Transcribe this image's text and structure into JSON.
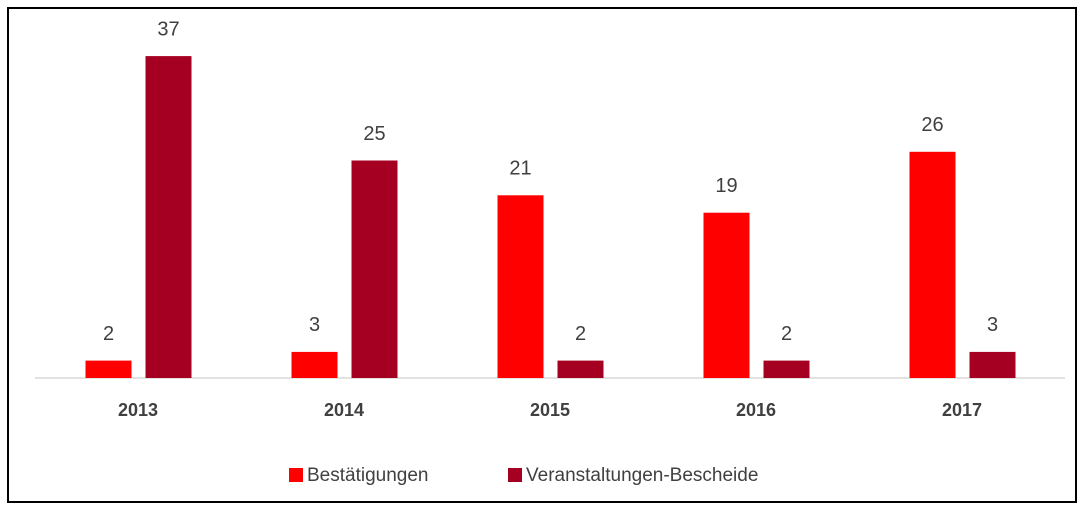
{
  "chart_data": {
    "type": "bar",
    "categories": [
      "2013",
      "2014",
      "2015",
      "2016",
      "2017"
    ],
    "series": [
      {
        "name": "Bestätigungen",
        "color": "#ff0000",
        "values": [
          2,
          3,
          21,
          19,
          26
        ]
      },
      {
        "name": "Veranstaltungen-Bescheide",
        "color": "#a50021",
        "values": [
          37,
          25,
          2,
          2,
          3
        ]
      }
    ],
    "ylim": [
      0,
      40
    ],
    "legend": "bottom"
  }
}
